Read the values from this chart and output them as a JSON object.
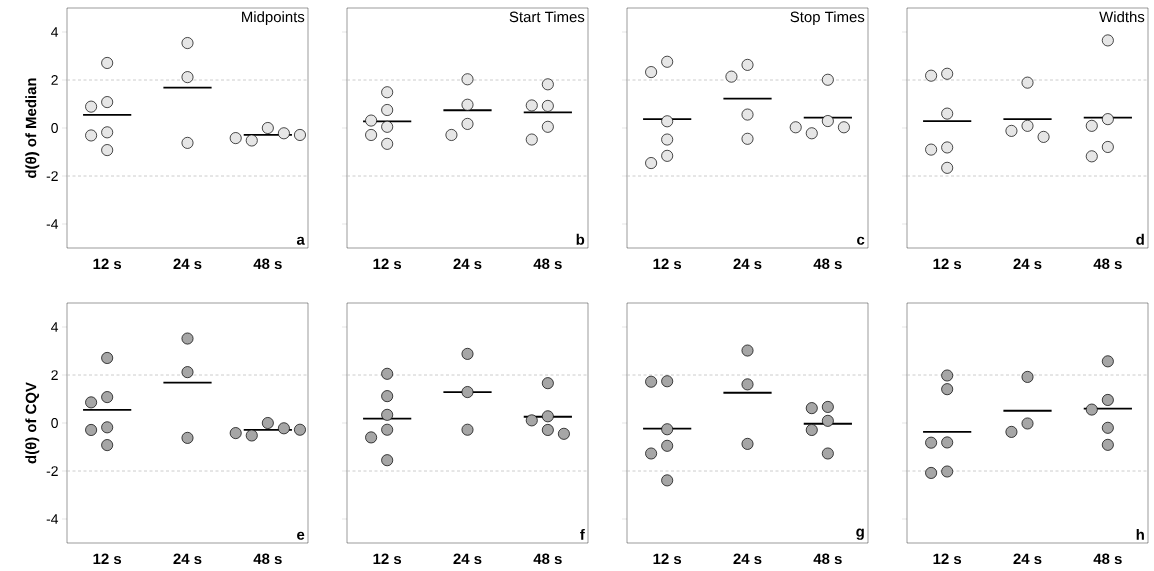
{
  "chart_data": [
    {
      "type": "scatter",
      "title": "Midpoints",
      "ylabel": "d(θ) of Median",
      "categories": [
        "12 s",
        "24 s",
        "48 s"
      ],
      "ylim": [
        -5,
        5
      ],
      "yticks": [
        -4,
        -2,
        0,
        2,
        4
      ],
      "annotations": [
        "a"
      ],
      "ref_lines": [
        {
          "axis": "y",
          "value": 2,
          "color": "#bfbfbf",
          "line_style": "dashed"
        },
        {
          "axis": "y",
          "value": -2,
          "color": "#bfbfbf",
          "line_style": "dashed"
        }
      ],
      "series": [
        {
          "type": "scatter",
          "marker": "circle",
          "color": "#e6e6e6",
          "x": [
            "12 s",
            "12 s",
            "12 s",
            "12 s",
            "12 s",
            "12 s",
            "24 s",
            "24 s",
            "24 s",
            "48 s",
            "48 s",
            "48 s",
            "48 s",
            "48 s"
          ],
          "values": [
            2.71,
            1.08,
            0.89,
            -0.18,
            -0.31,
            -0.92,
            3.54,
            2.12,
            -0.62,
            0.0,
            -0.52,
            -0.22,
            -0.42,
            -0.29
          ]
        },
        {
          "type": "box",
          "color": "#000000",
          "boxes": [
            {
              "low": 0.55,
              "q1": 0.55,
              "median": 0.55,
              "q3": 0.55,
              "high": 0.55
            },
            {
              "low": 1.68,
              "q1": 1.68,
              "median": 1.68,
              "q3": 1.68,
              "high": 1.68
            },
            {
              "low": -0.29,
              "q1": -0.29,
              "median": -0.29,
              "q3": -0.29,
              "high": -0.29
            }
          ]
        }
      ]
    },
    {
      "type": "scatter",
      "title": "Start Times",
      "categories": [
        "12 s",
        "24 s",
        "48 s"
      ],
      "ylim": [
        -5,
        5
      ],
      "yticks": [
        -4,
        -2,
        0,
        2,
        4
      ],
      "tick_labels": "x",
      "annotations": [
        "b"
      ],
      "ref_lines": [
        {
          "axis": "y",
          "value": 2,
          "color": "#bfbfbf",
          "line_style": "dashed"
        },
        {
          "axis": "y",
          "value": -2,
          "color": "#bfbfbf",
          "line_style": "dashed"
        }
      ],
      "series": [
        {
          "type": "scatter",
          "marker": "circle",
          "color": "#e6e6e6",
          "x": [
            "12 s",
            "12 s",
            "12 s",
            "12 s",
            "12 s",
            "12 s",
            "24 s",
            "24 s",
            "24 s",
            "24 s",
            "48 s",
            "48 s",
            "48 s",
            "48 s",
            "48 s"
          ],
          "values": [
            1.49,
            0.75,
            0.05,
            0.31,
            -0.29,
            -0.66,
            2.03,
            0.97,
            0.17,
            -0.29,
            1.82,
            0.92,
            0.94,
            0.05,
            -0.48
          ]
        },
        {
          "type": "box",
          "color": "#000000",
          "boxes": [
            {
              "low": 0.28,
              "q1": 0.28,
              "median": 0.28,
              "q3": 0.28,
              "high": 0.28
            },
            {
              "low": 0.74,
              "q1": 0.74,
              "median": 0.74,
              "q3": 0.74,
              "high": 0.74
            },
            {
              "low": 0.65,
              "q1": 0.65,
              "median": 0.65,
              "q3": 0.65,
              "high": 0.65
            }
          ]
        }
      ]
    },
    {
      "type": "scatter",
      "title": "Stop Times",
      "categories": [
        "12 s",
        "24 s",
        "48 s"
      ],
      "ylim": [
        -5,
        5
      ],
      "yticks": [
        -4,
        -2,
        0,
        2,
        4
      ],
      "tick_labels": "x",
      "annotations": [
        "c"
      ],
      "ref_lines": [
        {
          "axis": "y",
          "value": 2,
          "color": "#bfbfbf",
          "line_style": "dashed"
        },
        {
          "axis": "y",
          "value": -2,
          "color": "#bfbfbf",
          "line_style": "dashed"
        }
      ],
      "series": [
        {
          "type": "scatter",
          "marker": "circle",
          "color": "#e6e6e6",
          "x": [
            "12 s",
            "12 s",
            "12 s",
            "12 s",
            "12 s",
            "12 s",
            "24 s",
            "24 s",
            "24 s",
            "24 s",
            "48 s",
            "48 s",
            "48 s",
            "48 s",
            "48 s"
          ],
          "values": [
            2.76,
            2.33,
            0.28,
            -0.48,
            -1.16,
            -1.46,
            2.63,
            2.14,
            0.56,
            -0.45,
            2.01,
            0.29,
            -0.22,
            0.03,
            0.03
          ]
        },
        {
          "type": "box",
          "color": "#000000",
          "boxes": [
            {
              "low": 0.37,
              "q1": 0.37,
              "median": 0.37,
              "q3": 0.37,
              "high": 0.37
            },
            {
              "low": 1.22,
              "q1": 1.22,
              "median": 1.22,
              "q3": 1.22,
              "high": 1.22
            },
            {
              "low": 0.43,
              "q1": 0.43,
              "median": 0.43,
              "q3": 0.43,
              "high": 0.43
            }
          ]
        }
      ]
    },
    {
      "type": "scatter",
      "title": "Widths",
      "categories": [
        "12 s",
        "24 s",
        "48 s"
      ],
      "ylim": [
        -5,
        5
      ],
      "yticks": [
        -4,
        -2,
        0,
        2,
        4
      ],
      "tick_labels": "x",
      "annotations": [
        "d"
      ],
      "ref_lines": [
        {
          "axis": "y",
          "value": 2,
          "color": "#bfbfbf",
          "line_style": "dashed"
        },
        {
          "axis": "y",
          "value": -2,
          "color": "#bfbfbf",
          "line_style": "dashed"
        }
      ],
      "series": [
        {
          "type": "scatter",
          "marker": "circle",
          "color": "#e6e6e6",
          "x": [
            "12 s",
            "12 s",
            "12 s",
            "12 s",
            "12 s",
            "12 s",
            "24 s",
            "24 s",
            "24 s",
            "24 s",
            "48 s",
            "48 s",
            "48 s",
            "48 s",
            "48 s"
          ],
          "values": [
            2.26,
            2.18,
            0.6,
            -0.81,
            -0.9,
            -1.66,
            1.89,
            0.09,
            -0.12,
            -0.37,
            3.65,
            0.37,
            0.09,
            -0.79,
            -1.18
          ]
        },
        {
          "type": "box",
          "color": "#000000",
          "boxes": [
            {
              "low": 0.29,
              "q1": 0.29,
              "median": 0.29,
              "q3": 0.29,
              "high": 0.29
            },
            {
              "low": 0.37,
              "q1": 0.37,
              "median": 0.37,
              "q3": 0.37,
              "high": 0.37
            },
            {
              "low": 0.43,
              "q1": 0.43,
              "median": 0.43,
              "q3": 0.43,
              "high": 0.43
            }
          ]
        }
      ]
    },
    {
      "type": "scatter",
      "ylabel": "d(θ) of CQV",
      "categories": [
        "12 s",
        "24 s",
        "48 s"
      ],
      "ylim": [
        -5,
        5
      ],
      "yticks": [
        -4,
        -2,
        0,
        2,
        4
      ],
      "annotations": [
        "e"
      ],
      "ref_lines": [
        {
          "axis": "y",
          "value": 2,
          "color": "#bfbfbf",
          "line_style": "dashed"
        },
        {
          "axis": "y",
          "value": -2,
          "color": "#bfbfbf",
          "line_style": "dashed"
        }
      ],
      "series": [
        {
          "type": "scatter",
          "marker": "circle",
          "color": "#a6a6a6",
          "x": [
            "12 s",
            "12 s",
            "12 s",
            "12 s",
            "12 s",
            "12 s",
            "24 s",
            "24 s",
            "24 s",
            "48 s",
            "48 s",
            "48 s",
            "48 s",
            "48 s"
          ],
          "values": [
            2.71,
            1.08,
            0.86,
            -0.18,
            -0.29,
            -0.92,
            3.52,
            2.12,
            -0.62,
            0.0,
            -0.52,
            -0.22,
            -0.42,
            -0.28
          ]
        },
        {
          "type": "box",
          "color": "#000000",
          "boxes": [
            {
              "low": 0.55,
              "q1": 0.55,
              "median": 0.55,
              "q3": 0.55,
              "high": 0.55
            },
            {
              "low": 1.68,
              "q1": 1.68,
              "median": 1.68,
              "q3": 1.68,
              "high": 1.68
            },
            {
              "low": -0.29,
              "q1": -0.29,
              "median": -0.29,
              "q3": -0.29,
              "high": -0.29
            }
          ]
        }
      ]
    },
    {
      "type": "scatter",
      "categories": [
        "12 s",
        "24 s",
        "48 s"
      ],
      "ylim": [
        -5,
        5
      ],
      "yticks": [
        -4,
        -2,
        0,
        2,
        4
      ],
      "tick_labels": "x",
      "annotations": [
        "f"
      ],
      "ref_lines": [
        {
          "axis": "y",
          "value": 2,
          "color": "#bfbfbf",
          "line_style": "dashed"
        },
        {
          "axis": "y",
          "value": -2,
          "color": "#bfbfbf",
          "line_style": "dashed"
        }
      ],
      "series": [
        {
          "type": "scatter",
          "marker": "circle",
          "color": "#a6a6a6",
          "x": [
            "12 s",
            "12 s",
            "12 s",
            "12 s",
            "12 s",
            "12 s",
            "24 s",
            "24 s",
            "24 s",
            "48 s",
            "48 s",
            "48 s",
            "48 s",
            "48 s"
          ],
          "values": [
            2.05,
            1.12,
            0.34,
            -0.28,
            -0.6,
            -1.55,
            2.88,
            1.29,
            -0.28,
            1.66,
            0.28,
            0.11,
            -0.29,
            -0.45
          ]
        },
        {
          "type": "box",
          "color": "#000000",
          "boxes": [
            {
              "low": 0.18,
              "q1": 0.18,
              "median": 0.18,
              "q3": 0.18,
              "high": 0.18
            },
            {
              "low": 1.29,
              "q1": 1.29,
              "median": 1.29,
              "q3": 1.29,
              "high": 1.29
            },
            {
              "low": 0.26,
              "q1": 0.26,
              "median": 0.26,
              "q3": 0.26,
              "high": 0.26
            }
          ]
        }
      ]
    },
    {
      "type": "scatter",
      "categories": [
        "12 s",
        "24 s",
        "48 s"
      ],
      "ylim": [
        -5,
        5
      ],
      "yticks": [
        -4,
        -2,
        0,
        2,
        4
      ],
      "tick_labels": "x",
      "annotations": [
        "g"
      ],
      "ref_lines": [
        {
          "axis": "y",
          "value": 2,
          "color": "#bfbfbf",
          "line_style": "dashed"
        },
        {
          "axis": "y",
          "value": -2,
          "color": "#bfbfbf",
          "line_style": "dashed"
        }
      ],
      "series": [
        {
          "type": "scatter",
          "marker": "circle",
          "color": "#a6a6a6",
          "x": [
            "12 s",
            "12 s",
            "12 s",
            "12 s",
            "12 s",
            "12 s",
            "24 s",
            "24 s",
            "24 s",
            "48 s",
            "48 s",
            "48 s",
            "48 s",
            "48 s"
          ],
          "values": [
            1.74,
            1.72,
            -0.26,
            -0.95,
            -1.27,
            -2.39,
            3.02,
            1.61,
            -0.87,
            0.67,
            0.62,
            0.09,
            -0.29,
            -1.27
          ]
        },
        {
          "type": "box",
          "color": "#000000",
          "boxes": [
            {
              "low": -0.23,
              "q1": -0.23,
              "median": -0.23,
              "q3": -0.23,
              "high": -0.23
            },
            {
              "low": 1.26,
              "q1": 1.26,
              "median": 1.26,
              "q3": 1.26,
              "high": 1.26
            },
            {
              "low": -0.03,
              "q1": -0.03,
              "median": -0.03,
              "q3": -0.03,
              "high": -0.03
            }
          ]
        }
      ]
    },
    {
      "type": "scatter",
      "categories": [
        "12 s",
        "24 s",
        "48 s"
      ],
      "ylim": [
        -5,
        5
      ],
      "yticks": [
        -4,
        -2,
        0,
        2,
        4
      ],
      "tick_labels": "x",
      "annotations": [
        "h"
      ],
      "ref_lines": [
        {
          "axis": "y",
          "value": 2,
          "color": "#bfbfbf",
          "line_style": "dashed"
        },
        {
          "axis": "y",
          "value": -2,
          "color": "#bfbfbf",
          "line_style": "dashed"
        }
      ],
      "series": [
        {
          "type": "scatter",
          "marker": "circle",
          "color": "#a6a6a6",
          "x": [
            "12 s",
            "12 s",
            "12 s",
            "12 s",
            "12 s",
            "12 s",
            "24 s",
            "24 s",
            "24 s",
            "48 s",
            "48 s",
            "48 s",
            "48 s",
            "48 s"
          ],
          "values": [
            1.98,
            1.41,
            -0.81,
            -0.82,
            -2.02,
            -2.08,
            1.92,
            -0.02,
            -0.37,
            2.57,
            0.96,
            0.56,
            -0.2,
            -0.91
          ]
        },
        {
          "type": "box",
          "color": "#000000",
          "boxes": [
            {
              "low": -0.37,
              "q1": -0.37,
              "median": -0.37,
              "q3": -0.37,
              "high": -0.37
            },
            {
              "low": 0.51,
              "q1": 0.51,
              "median": 0.51,
              "q3": 0.51,
              "high": 0.51
            },
            {
              "low": 0.6,
              "q1": 0.6,
              "median": 0.6,
              "q3": 0.6,
              "high": 0.6
            }
          ]
        }
      ]
    }
  ]
}
